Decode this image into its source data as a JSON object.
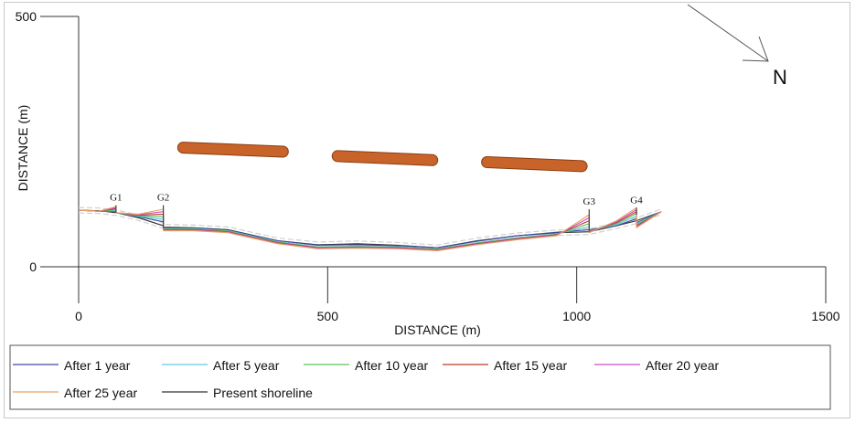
{
  "chart_data": {
    "type": "line",
    "title": "",
    "xlabel": "DISTANCE (m)",
    "ylabel": "DISTANCE (m)",
    "xlim": [
      0,
      1500
    ],
    "ylim": [
      0,
      500
    ],
    "x_ticks": [
      0,
      500,
      1000,
      1500
    ],
    "y_ticks": [
      0,
      500
    ],
    "north_label": "N",
    "groins": [
      {
        "label": "G1",
        "x": 75,
        "y_base": 108,
        "y_top": 123
      },
      {
        "label": "G2",
        "x": 170,
        "y_base": 77,
        "y_top": 123
      },
      {
        "label": "G3",
        "x": 1025,
        "y_base": 70,
        "y_top": 115
      },
      {
        "label": "G4",
        "x": 1120,
        "y_base": 104,
        "y_top": 118
      }
    ],
    "breakwaters": [
      {
        "x1": 210,
        "y1": 238,
        "x2": 410,
        "y2": 230
      },
      {
        "x1": 520,
        "y1": 221,
        "x2": 710,
        "y2": 213
      },
      {
        "x1": 820,
        "y1": 209,
        "x2": 1010,
        "y2": 201
      }
    ],
    "x": [
      0,
      40,
      75,
      75,
      120,
      170,
      170,
      230,
      300,
      400,
      480,
      560,
      640,
      720,
      800,
      880,
      960,
      1025,
      1025,
      1080,
      1120,
      1120,
      1170
    ],
    "series": [
      {
        "name": "Present shoreline",
        "color": "#333333",
        "dashed": false,
        "values": [
          113,
          112,
          108,
          108,
          98,
          82,
          79,
          78,
          74,
          52,
          44,
          46,
          43,
          38,
          52,
          62,
          68,
          70,
          70,
          82,
          92,
          92,
          110
        ]
      },
      {
        "name": "After 1 year",
        "color": "#3c4ba0",
        "dashed": false,
        "values": [
          113,
          111,
          110,
          108,
          100,
          90,
          77,
          77,
          73,
          52,
          43,
          44,
          42,
          38,
          51,
          62,
          69,
          74,
          74,
          82,
          96,
          88,
          110
        ]
      },
      {
        "name": "After 5 year",
        "color": "#62c6e5",
        "dashed": false,
        "values": [
          113,
          111,
          112,
          108,
          101,
          95,
          76,
          76,
          72,
          50,
          40,
          41,
          40,
          36,
          48,
          58,
          66,
          80,
          72,
          84,
          101,
          86,
          110
        ]
      },
      {
        "name": "After 10 year",
        "color": "#5cc35c",
        "dashed": false,
        "values": [
          113,
          111,
          114,
          108,
          102,
          100,
          75,
          75,
          71,
          49,
          39,
          40,
          39,
          35,
          47,
          57,
          65,
          86,
          71,
          86,
          106,
          84,
          110
        ]
      },
      {
        "name": "After 15 year",
        "color": "#c0392b",
        "dashed": false,
        "values": [
          113,
          111,
          116,
          108,
          103,
          105,
          74,
          74,
          70,
          48,
          38,
          39,
          38,
          34,
          46,
          56,
          64,
          92,
          70,
          88,
          110,
          82,
          110
        ]
      },
      {
        "name": "After 20 year",
        "color": "#c84fc8",
        "dashed": false,
        "values": [
          113,
          111,
          118,
          108,
          104,
          110,
          73,
          73,
          69,
          47,
          37,
          38,
          37,
          33,
          45,
          55,
          63,
          98,
          69,
          90,
          114,
          80,
          110
        ]
      },
      {
        "name": "After 25 year",
        "color": "#e8a060",
        "dashed": false,
        "values": [
          113,
          111,
          120,
          108,
          105,
          115,
          72,
          72,
          68,
          46,
          36,
          37,
          36,
          32,
          44,
          54,
          62,
          104,
          68,
          92,
          118,
          78,
          110
        ]
      }
    ],
    "legend": [
      {
        "name": "After 1 year",
        "color": "#3c4ba0"
      },
      {
        "name": "After 5 year",
        "color": "#62c6e5"
      },
      {
        "name": "After 10 year",
        "color": "#5cc35c"
      },
      {
        "name": "After 15 year",
        "color": "#c0392b"
      },
      {
        "name": "After 20 year",
        "color": "#c84fc8"
      },
      {
        "name": "After 25 year",
        "color": "#e8a060"
      },
      {
        "name": "Present shoreline",
        "color": "#333333"
      }
    ],
    "legend_position": "bottom",
    "colors": {
      "breakwater": "#c8642a",
      "breakwater_edge": "#8a3d12",
      "dashed_bands": "#d0d0d0"
    }
  }
}
